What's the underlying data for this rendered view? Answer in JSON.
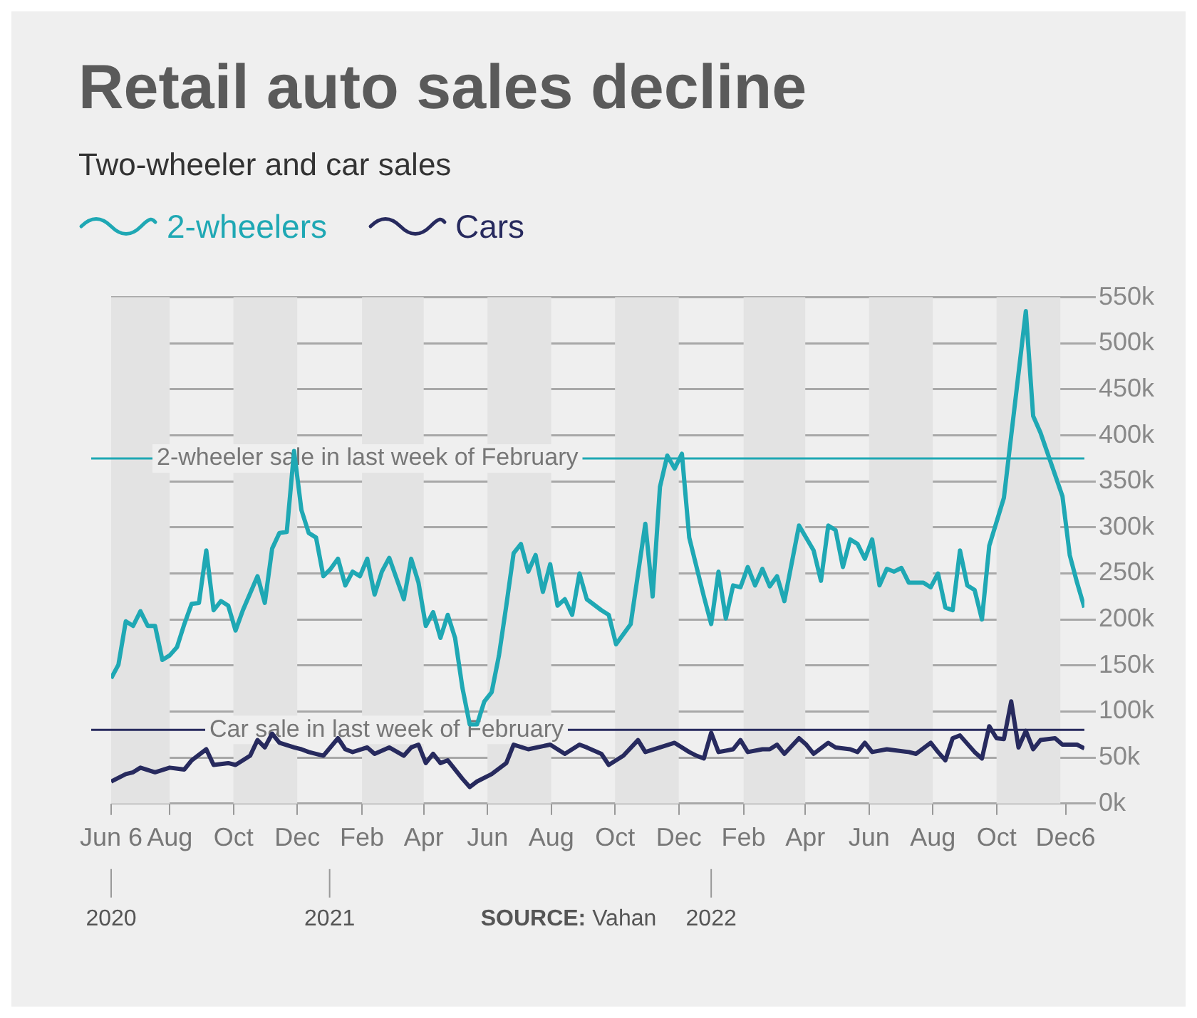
{
  "chart_data": {
    "type": "line",
    "title": "Retail auto sales decline",
    "subtitle": "Two-wheeler and car sales",
    "legend": "top left",
    "grid": "y",
    "marker": "none",
    "line_style": "solid",
    "xlim": [
      "2020-06-06",
      "2022-12-24"
    ],
    "xticks": [
      {
        "value": "2020-06-06",
        "label": "Jun 6"
      },
      {
        "value": "2020-08-01",
        "label": "Aug"
      },
      {
        "value": "2020-10-01",
        "label": "Oct"
      },
      {
        "value": "2020-12-01",
        "label": "Dec"
      },
      {
        "value": "2021-02-01",
        "label": "Feb"
      },
      {
        "value": "2021-04-01",
        "label": "Apr"
      },
      {
        "value": "2021-06-01",
        "label": "Jun"
      },
      {
        "value": "2021-08-01",
        "label": "Aug"
      },
      {
        "value": "2021-10-01",
        "label": "Oct"
      },
      {
        "value": "2021-12-01",
        "label": "Dec"
      },
      {
        "value": "2022-02-01",
        "label": "Feb"
      },
      {
        "value": "2022-04-01",
        "label": "Apr"
      },
      {
        "value": "2022-06-01",
        "label": "Jun"
      },
      {
        "value": "2022-08-01",
        "label": "Aug"
      },
      {
        "value": "2022-10-01",
        "label": "Oct"
      },
      {
        "value": "2022-12-06",
        "label": "Dec6"
      }
    ],
    "ylim": [
      0,
      550000
    ],
    "yticks": [
      {
        "value": 0,
        "label": "0k"
      },
      {
        "value": 50000,
        "label": "50k"
      },
      {
        "value": 100000,
        "label": "100k"
      },
      {
        "value": 150000,
        "label": "150k"
      },
      {
        "value": 200000,
        "label": "200k"
      },
      {
        "value": 250000,
        "label": "250k"
      },
      {
        "value": 300000,
        "label": "300k"
      },
      {
        "value": 350000,
        "label": "350k"
      },
      {
        "value": 400000,
        "label": "400k"
      },
      {
        "value": 450000,
        "label": "450k"
      },
      {
        "value": 500000,
        "label": "500k"
      },
      {
        "value": 550000,
        "label": "550k"
      }
    ],
    "series": [
      {
        "name": "2-wheelers",
        "color": "#1fa8b4",
        "x": [
          "2020-06-06",
          "2020-06-13",
          "2020-06-20",
          "2020-06-27",
          "2020-07-04",
          "2020-07-11",
          "2020-07-18",
          "2020-07-25",
          "2020-08-01",
          "2020-08-08",
          "2020-08-15",
          "2020-08-22",
          "2020-08-29",
          "2020-09-05",
          "2020-09-12",
          "2020-09-19",
          "2020-09-26",
          "2020-10-03",
          "2020-10-10",
          "2020-10-24",
          "2020-10-31",
          "2020-11-07",
          "2020-11-14",
          "2020-11-21",
          "2020-11-28",
          "2020-12-05",
          "2020-12-12",
          "2020-12-19",
          "2020-12-26",
          "2021-01-02",
          "2021-01-09",
          "2021-01-16",
          "2021-01-23",
          "2021-01-30",
          "2021-02-06",
          "2021-02-13",
          "2021-02-20",
          "2021-02-27",
          "2021-03-13",
          "2021-03-20",
          "2021-03-27",
          "2021-04-03",
          "2021-04-10",
          "2021-04-17",
          "2021-04-24",
          "2021-05-01",
          "2021-05-08",
          "2021-05-15",
          "2021-05-22",
          "2021-05-29",
          "2021-06-05",
          "2021-06-12",
          "2021-06-19",
          "2021-06-26",
          "2021-07-03",
          "2021-07-10",
          "2021-07-17",
          "2021-07-24",
          "2021-07-31",
          "2021-08-07",
          "2021-08-14",
          "2021-08-21",
          "2021-08-28",
          "2021-09-04",
          "2021-09-18",
          "2021-09-25",
          "2021-10-02",
          "2021-10-16",
          "2021-10-30",
          "2021-11-06",
          "2021-11-13",
          "2021-11-20",
          "2021-11-27",
          "2021-12-04",
          "2021-12-11",
          "2021-12-25",
          "2022-01-01",
          "2022-01-08",
          "2022-01-15",
          "2022-01-22",
          "2022-01-29",
          "2022-02-05",
          "2022-02-12",
          "2022-02-19",
          "2022-02-26",
          "2022-03-05",
          "2022-03-12",
          "2022-03-26",
          "2022-04-09",
          "2022-04-16",
          "2022-04-23",
          "2022-04-30",
          "2022-05-07",
          "2022-05-14",
          "2022-05-21",
          "2022-05-28",
          "2022-06-04",
          "2022-06-11",
          "2022-06-18",
          "2022-06-25",
          "2022-07-02",
          "2022-07-09",
          "2022-07-23",
          "2022-07-30",
          "2022-08-06",
          "2022-08-13",
          "2022-08-20",
          "2022-08-27",
          "2022-09-03",
          "2022-09-10",
          "2022-09-17",
          "2022-09-24",
          "2022-10-08",
          "2022-10-29",
          "2022-11-05",
          "2022-11-12",
          "2022-12-03",
          "2022-12-10",
          "2022-12-17",
          "2022-12-24"
        ],
        "values": [
          136000,
          151000,
          198000,
          193000,
          209000,
          193000,
          193000,
          156000,
          161000,
          170000,
          195000,
          217000,
          218000,
          275000,
          210000,
          220000,
          215000,
          188000,
          210000,
          247000,
          218000,
          277000,
          294000,
          295000,
          383000,
          319000,
          294000,
          289000,
          247000,
          255000,
          266000,
          237000,
          252000,
          247000,
          266000,
          227000,
          252000,
          267000,
          222000,
          266000,
          240000,
          193000,
          208000,
          180000,
          205000,
          180000,
          126000,
          86000,
          86000,
          111000,
          121000,
          161000,
          215000,
          272000,
          282000,
          252000,
          270000,
          230000,
          260000,
          215000,
          222000,
          205000,
          250000,
          222000,
          210000,
          205000,
          173000,
          195000,
          304000,
          225000,
          344000,
          378000,
          364000,
          380000,
          289000,
          225000,
          195000,
          252000,
          201000,
          237000,
          235000,
          257000,
          237000,
          255000,
          236000,
          247000,
          220000,
          302000,
          275000,
          242000,
          302000,
          297000,
          257000,
          287000,
          282000,
          266000,
          287000,
          237000,
          255000,
          252000,
          256000,
          240000,
          240000,
          235000,
          250000,
          213000,
          210000,
          275000,
          237000,
          232000,
          200000,
          280000,
          332000,
          535000,
          421000,
          403000,
          334000,
          270000,
          240000,
          213000
        ]
      },
      {
        "name": "Cars",
        "color": "#272a5e",
        "x": [
          "2020-06-06",
          "2020-06-20",
          "2020-06-27",
          "2020-07-04",
          "2020-07-18",
          "2020-08-01",
          "2020-08-15",
          "2020-08-22",
          "2020-09-05",
          "2020-09-12",
          "2020-09-26",
          "2020-10-03",
          "2020-10-17",
          "2020-10-24",
          "2020-10-31",
          "2020-11-07",
          "2020-11-14",
          "2020-11-28",
          "2020-12-05",
          "2020-12-12",
          "2020-12-26",
          "2021-01-09",
          "2021-01-16",
          "2021-01-23",
          "2021-02-06",
          "2021-02-13",
          "2021-02-27",
          "2021-03-13",
          "2021-03-20",
          "2021-03-27",
          "2021-04-03",
          "2021-04-10",
          "2021-04-17",
          "2021-04-24",
          "2021-05-08",
          "2021-05-15",
          "2021-05-22",
          "2021-06-05",
          "2021-06-19",
          "2021-06-26",
          "2021-07-10",
          "2021-07-31",
          "2021-08-14",
          "2021-08-28",
          "2021-09-04",
          "2021-09-18",
          "2021-09-25",
          "2021-10-09",
          "2021-10-23",
          "2021-10-30",
          "2021-11-13",
          "2021-11-27",
          "2021-12-11",
          "2021-12-18",
          "2021-12-25",
          "2022-01-01",
          "2022-01-08",
          "2022-01-22",
          "2022-01-29",
          "2022-02-05",
          "2022-02-19",
          "2022-02-26",
          "2022-03-05",
          "2022-03-12",
          "2022-03-26",
          "2022-04-02",
          "2022-04-09",
          "2022-04-23",
          "2022-04-30",
          "2022-05-14",
          "2022-05-21",
          "2022-05-28",
          "2022-06-04",
          "2022-06-18",
          "2022-07-09",
          "2022-07-16",
          "2022-07-30",
          "2022-08-06",
          "2022-08-13",
          "2022-08-20",
          "2022-08-27",
          "2022-09-10",
          "2022-09-17",
          "2022-09-24",
          "2022-10-01",
          "2022-10-08",
          "2022-10-15",
          "2022-10-22",
          "2022-10-29",
          "2022-11-05",
          "2022-11-12",
          "2022-11-26",
          "2022-12-03",
          "2022-12-17",
          "2022-12-24"
        ],
        "values": [
          24000,
          32000,
          34000,
          39000,
          34000,
          39000,
          37000,
          47000,
          59000,
          42000,
          44000,
          42000,
          52000,
          69000,
          61000,
          76000,
          66000,
          61000,
          59000,
          56000,
          52000,
          71000,
          59000,
          56000,
          61000,
          54000,
          61000,
          52000,
          61000,
          64000,
          44000,
          54000,
          44000,
          47000,
          27000,
          18000,
          24000,
          32000,
          44000,
          64000,
          59000,
          64000,
          54000,
          64000,
          61000,
          54000,
          42000,
          52000,
          69000,
          56000,
          61000,
          66000,
          56000,
          52000,
          49000,
          77000,
          56000,
          59000,
          69000,
          56000,
          59000,
          59000,
          64000,
          54000,
          71000,
          64000,
          54000,
          66000,
          61000,
          59000,
          56000,
          66000,
          56000,
          59000,
          56000,
          54000,
          66000,
          56000,
          47000,
          71000,
          74000,
          56000,
          49000,
          84000,
          71000,
          70000,
          111000,
          61000,
          79000,
          59000,
          69000,
          71000,
          64000,
          64000,
          60000
        ]
      }
    ],
    "ref_lines": [
      {
        "axis": "y",
        "value": 375000,
        "label": "2-wheeler sale in last week of February",
        "color": "#1fa8b4"
      },
      {
        "axis": "y",
        "value": 80000,
        "label": "Car sale in last week of February",
        "color": "#272a5e"
      }
    ],
    "bands": [
      {
        "axis": "x",
        "from": "2020-06-06",
        "to": "2020-08-01",
        "color": "#e3e3e3"
      },
      {
        "axis": "x",
        "from": "2020-10-01",
        "to": "2020-12-01",
        "color": "#e3e3e3"
      },
      {
        "axis": "x",
        "from": "2021-02-01",
        "to": "2021-04-01",
        "color": "#e3e3e3"
      },
      {
        "axis": "x",
        "from": "2021-06-01",
        "to": "2021-08-01",
        "color": "#e3e3e3"
      },
      {
        "axis": "x",
        "from": "2021-10-01",
        "to": "2021-12-01",
        "color": "#e3e3e3"
      },
      {
        "axis": "x",
        "from": "2022-02-01",
        "to": "2022-04-01",
        "color": "#e3e3e3"
      },
      {
        "axis": "x",
        "from": "2022-06-01",
        "to": "2022-08-01",
        "color": "#e3e3e3"
      },
      {
        "axis": "x",
        "from": "2022-10-01",
        "to": "2022-12-01",
        "color": "#e3e3e3"
      }
    ],
    "annotations": [
      {
        "text": "2020",
        "x": "2020-06-06"
      },
      {
        "text": "2021",
        "x": "2021-01-01"
      },
      {
        "text": "2022",
        "x": "2022-01-01"
      },
      "SOURCE: Vahan"
    ]
  }
}
